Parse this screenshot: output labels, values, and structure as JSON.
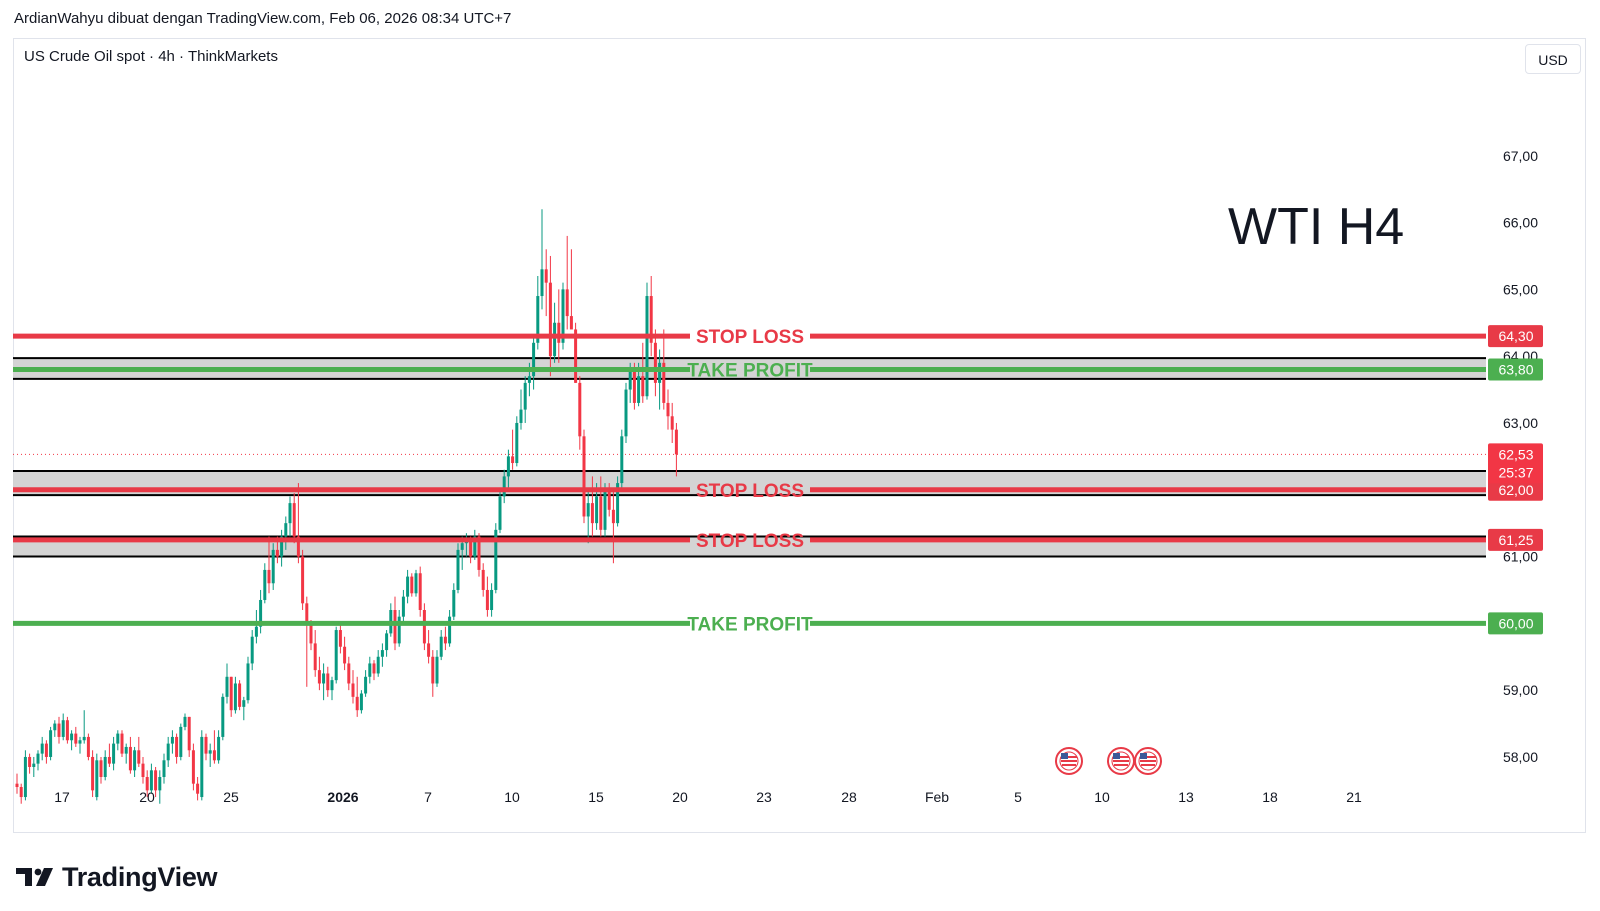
{
  "header": {
    "text": "ArdianWahyu dibuat dengan TradingView.com, Feb 06, 2026 08:34 UTC+7"
  },
  "symbol": {
    "text": "US Crude Oil spot · 4h · ThinkMarkets"
  },
  "currency": {
    "label": "USD"
  },
  "annotation": {
    "text": "WTI H4"
  },
  "footer": {
    "brand": "TradingView"
  },
  "colors": {
    "up": "#089981",
    "down": "#f23645",
    "stop": "#e83a47",
    "take": "#4caf50",
    "zone": "#cfcfcf"
  },
  "chart_data": {
    "type": "candlestick",
    "title": "",
    "ylim": [
      57.3,
      67.7
    ],
    "y_ticks": [
      58,
      59,
      60,
      61,
      62,
      63,
      64,
      65,
      66,
      67
    ],
    "y_tick_labels": [
      "58,00",
      "59,00",
      "60,00",
      "61,00",
      "62,00",
      "63,00",
      "64,00",
      "65,00",
      "66,00",
      "67,00"
    ],
    "x_ticks": [
      "17",
      "20",
      "25",
      "2026",
      "7",
      "10",
      "15",
      "20",
      "23",
      "28",
      "Feb",
      "5",
      "10",
      "13",
      "18",
      "21"
    ],
    "levels": [
      {
        "kind": "stop",
        "label": "STOP LOSS",
        "price": 64.3,
        "tag": "64,30"
      },
      {
        "kind": "take",
        "label": "TAKE PROFIT",
        "price": 63.8,
        "tag": "63,80"
      },
      {
        "kind": "stop",
        "label": "STOP LOSS",
        "price": 62.0,
        "tag": "62,00"
      },
      {
        "kind": "stop",
        "label": "STOP LOSS",
        "price": 61.25,
        "tag": "61,25"
      },
      {
        "kind": "take",
        "label": "TAKE PROFIT",
        "price": 60.0,
        "tag": "60,00"
      }
    ],
    "zones": [
      {
        "from": 63.66,
        "to": 63.97
      },
      {
        "from": 61.92,
        "to": 62.28
      },
      {
        "from": 61.0,
        "to": 61.3
      }
    ],
    "last_price": {
      "value": 62.53,
      "label": "62,53",
      "countdown": "25:37"
    },
    "candles": [
      [
        57.6,
        57.75,
        57.45,
        57.55
      ],
      [
        57.55,
        57.6,
        57.3,
        57.4
      ],
      [
        57.4,
        58.1,
        57.35,
        58.0
      ],
      [
        58.0,
        58.05,
        57.75,
        57.85
      ],
      [
        57.85,
        58.0,
        57.7,
        57.9
      ],
      [
        57.9,
        58.1,
        57.8,
        58.05
      ],
      [
        58.05,
        58.3,
        57.95,
        58.2
      ],
      [
        58.2,
        58.25,
        57.9,
        58.0
      ],
      [
        58.0,
        58.45,
        57.95,
        58.4
      ],
      [
        58.4,
        58.55,
        58.3,
        58.5
      ],
      [
        58.5,
        58.6,
        58.2,
        58.3
      ],
      [
        58.3,
        58.65,
        58.25,
        58.55
      ],
      [
        58.55,
        58.6,
        58.2,
        58.25
      ],
      [
        58.25,
        58.4,
        58.1,
        58.35
      ],
      [
        58.35,
        58.45,
        58.15,
        58.2
      ],
      [
        58.2,
        58.3,
        58.05,
        58.25
      ],
      [
        58.25,
        58.7,
        58.2,
        58.3
      ],
      [
        58.3,
        58.35,
        57.95,
        58.0
      ],
      [
        58.0,
        58.1,
        57.4,
        57.5
      ],
      [
        57.4,
        58.05,
        57.35,
        57.95
      ],
      [
        57.95,
        58.0,
        57.6,
        57.7
      ],
      [
        57.7,
        58.1,
        57.65,
        58.0
      ],
      [
        58.0,
        58.2,
        57.85,
        57.9
      ],
      [
        57.9,
        58.3,
        57.8,
        58.2
      ],
      [
        58.2,
        58.4,
        58.1,
        58.35
      ],
      [
        58.35,
        58.4,
        58.0,
        58.05
      ],
      [
        58.05,
        58.2,
        57.9,
        58.15
      ],
      [
        58.15,
        58.3,
        57.75,
        57.8
      ],
      [
        57.8,
        58.15,
        57.7,
        58.1
      ],
      [
        58.1,
        58.3,
        57.85,
        57.9
      ],
      [
        57.9,
        58.0,
        57.6,
        57.7
      ],
      [
        57.7,
        57.8,
        57.4,
        57.5
      ],
      [
        57.5,
        57.9,
        57.45,
        57.8
      ],
      [
        57.8,
        57.85,
        57.4,
        57.5
      ],
      [
        57.5,
        57.8,
        57.3,
        57.7
      ],
      [
        57.7,
        58.05,
        57.6,
        57.95
      ],
      [
        57.95,
        58.3,
        57.85,
        58.2
      ],
      [
        58.2,
        58.4,
        58.05,
        58.3
      ],
      [
        58.3,
        58.35,
        57.9,
        58.0
      ],
      [
        58.0,
        58.5,
        57.95,
        58.45
      ],
      [
        58.45,
        58.65,
        58.4,
        58.6
      ],
      [
        58.6,
        58.6,
        58.0,
        58.1
      ],
      [
        58.1,
        58.2,
        57.5,
        57.6
      ],
      [
        57.6,
        57.7,
        57.35,
        57.45
      ],
      [
        57.4,
        58.4,
        57.35,
        58.3
      ],
      [
        58.3,
        58.35,
        57.95,
        58.05
      ],
      [
        58.05,
        58.2,
        57.85,
        58.1
      ],
      [
        58.1,
        58.4,
        57.9,
        57.95
      ],
      [
        57.95,
        58.4,
        57.9,
        58.3
      ],
      [
        58.3,
        58.95,
        58.25,
        58.9
      ],
      [
        58.9,
        59.4,
        58.8,
        59.2
      ],
      [
        59.2,
        59.2,
        58.6,
        58.7
      ],
      [
        58.7,
        59.2,
        58.65,
        59.1
      ],
      [
        59.1,
        59.15,
        58.7,
        58.75
      ],
      [
        58.75,
        58.9,
        58.55,
        58.85
      ],
      [
        58.85,
        59.5,
        58.8,
        59.4
      ],
      [
        59.4,
        59.9,
        59.3,
        59.8
      ],
      [
        59.8,
        60.2,
        59.7,
        59.95
      ],
      [
        59.95,
        60.5,
        59.85,
        60.35
      ],
      [
        60.35,
        60.9,
        60.3,
        60.8
      ],
      [
        60.8,
        61.3,
        60.45,
        60.6
      ],
      [
        60.6,
        61.2,
        60.5,
        61.1
      ],
      [
        61.1,
        61.3,
        60.9,
        61.0
      ],
      [
        61.0,
        61.4,
        60.85,
        61.3
      ],
      [
        61.3,
        61.6,
        61.1,
        61.5
      ],
      [
        61.5,
        61.9,
        61.3,
        61.8
      ],
      [
        61.8,
        61.95,
        61.2,
        61.3
      ],
      [
        61.3,
        62.1,
        60.9,
        61.0
      ],
      [
        61.0,
        61.1,
        60.2,
        60.3
      ],
      [
        60.3,
        60.4,
        59.05,
        60.0
      ],
      [
        60.0,
        60.05,
        59.6,
        59.7
      ],
      [
        59.7,
        59.9,
        59.2,
        59.3
      ],
      [
        59.3,
        59.5,
        59.0,
        59.1
      ],
      [
        59.1,
        59.4,
        58.85,
        59.25
      ],
      [
        59.25,
        59.35,
        58.9,
        59.0
      ],
      [
        59.0,
        59.2,
        58.85,
        59.15
      ],
      [
        59.15,
        59.95,
        59.1,
        59.9
      ],
      [
        59.9,
        60.0,
        59.55,
        59.65
      ],
      [
        59.65,
        59.8,
        59.3,
        59.4
      ],
      [
        59.4,
        59.5,
        59.0,
        59.1
      ],
      [
        59.1,
        59.3,
        58.8,
        58.9
      ],
      [
        58.9,
        59.2,
        58.6,
        58.7
      ],
      [
        58.7,
        59.0,
        58.65,
        58.95
      ],
      [
        58.95,
        59.3,
        58.9,
        59.2
      ],
      [
        59.2,
        59.5,
        59.1,
        59.4
      ],
      [
        59.4,
        59.45,
        59.15,
        59.25
      ],
      [
        59.25,
        59.6,
        59.2,
        59.5
      ],
      [
        59.5,
        59.7,
        59.35,
        59.6
      ],
      [
        59.6,
        59.9,
        59.5,
        59.85
      ],
      [
        59.85,
        60.3,
        59.8,
        60.2
      ],
      [
        60.2,
        60.4,
        59.6,
        59.7
      ],
      [
        59.7,
        60.2,
        59.65,
        60.1
      ],
      [
        60.1,
        60.5,
        60.0,
        60.4
      ],
      [
        60.4,
        60.8,
        60.3,
        60.7
      ],
      [
        60.7,
        60.75,
        60.4,
        60.45
      ],
      [
        60.45,
        60.8,
        60.4,
        60.75
      ],
      [
        60.75,
        60.85,
        60.1,
        60.2
      ],
      [
        60.2,
        60.3,
        59.6,
        59.7
      ],
      [
        59.7,
        59.9,
        59.4,
        59.5
      ],
      [
        59.5,
        59.6,
        58.9,
        59.1
      ],
      [
        59.1,
        59.6,
        59.05,
        59.5
      ],
      [
        59.5,
        59.9,
        59.45,
        59.8
      ],
      [
        59.8,
        59.95,
        59.6,
        59.7
      ],
      [
        59.7,
        60.2,
        59.65,
        60.1
      ],
      [
        60.1,
        60.6,
        60.05,
        60.5
      ],
      [
        60.5,
        61.2,
        60.45,
        61.1
      ],
      [
        61.1,
        61.3,
        60.8,
        61.2
      ],
      [
        61.2,
        61.35,
        61.0,
        61.25
      ],
      [
        61.25,
        61.3,
        60.9,
        61.0
      ],
      [
        61.0,
        61.4,
        60.95,
        61.3
      ],
      [
        61.3,
        61.35,
        60.7,
        60.8
      ],
      [
        60.8,
        60.9,
        60.4,
        60.5
      ],
      [
        60.5,
        60.7,
        60.1,
        60.2
      ],
      [
        60.2,
        60.6,
        60.1,
        60.5
      ],
      [
        60.5,
        61.5,
        60.45,
        61.4
      ],
      [
        61.4,
        62.0,
        61.35,
        61.9
      ],
      [
        61.9,
        62.3,
        61.8,
        62.2
      ],
      [
        62.2,
        62.6,
        62.0,
        62.5
      ],
      [
        62.5,
        62.9,
        62.3,
        62.4
      ],
      [
        62.4,
        63.1,
        62.35,
        63.0
      ],
      [
        63.0,
        63.5,
        62.9,
        63.2
      ],
      [
        63.2,
        63.7,
        63.0,
        63.6
      ],
      [
        63.6,
        63.9,
        63.4,
        63.7
      ],
      [
        63.7,
        64.3,
        63.5,
        64.2
      ],
      [
        64.2,
        65.2,
        64.1,
        64.9
      ],
      [
        64.9,
        66.2,
        64.7,
        65.3
      ],
      [
        65.3,
        65.6,
        64.6,
        65.1
      ],
      [
        65.1,
        65.5,
        63.7,
        64.0
      ],
      [
        64.0,
        64.8,
        63.9,
        64.5
      ],
      [
        64.5,
        65.0,
        63.9,
        64.2
      ],
      [
        64.2,
        65.1,
        64.1,
        65.0
      ],
      [
        65.0,
        65.8,
        64.4,
        64.6
      ],
      [
        64.6,
        65.6,
        64.5,
        64.4
      ],
      [
        64.4,
        64.5,
        63.6,
        63.6
      ],
      [
        63.6,
        63.7,
        62.6,
        62.8
      ],
      [
        62.8,
        62.9,
        61.5,
        61.6
      ],
      [
        61.6,
        62.0,
        61.2,
        61.8
      ],
      [
        61.8,
        62.2,
        61.3,
        61.5
      ],
      [
        61.5,
        62.1,
        61.4,
        61.9
      ],
      [
        61.9,
        62.2,
        61.3,
        61.4
      ],
      [
        61.4,
        62.1,
        61.3,
        62.0
      ],
      [
        62.0,
        62.1,
        61.6,
        61.7
      ],
      [
        61.7,
        62.0,
        60.9,
        61.5
      ],
      [
        61.5,
        62.2,
        61.45,
        62.1
      ],
      [
        62.1,
        62.9,
        62.0,
        62.8
      ],
      [
        62.8,
        63.6,
        62.7,
        63.5
      ],
      [
        63.5,
        63.9,
        63.3,
        63.8
      ],
      [
        63.8,
        63.9,
        63.2,
        63.3
      ],
      [
        63.3,
        63.9,
        63.25,
        63.7
      ],
      [
        63.7,
        64.2,
        63.3,
        63.4
      ],
      [
        63.4,
        65.1,
        63.35,
        64.9
      ],
      [
        64.9,
        65.2,
        64.0,
        64.2
      ],
      [
        64.2,
        64.4,
        63.4,
        63.6
      ],
      [
        63.6,
        64.1,
        63.2,
        63.9
      ],
      [
        63.9,
        64.4,
        63.2,
        63.3
      ],
      [
        63.3,
        63.5,
        62.9,
        63.1
      ],
      [
        63.1,
        63.3,
        62.7,
        62.9
      ],
      [
        62.9,
        63.0,
        62.2,
        62.53
      ]
    ]
  }
}
